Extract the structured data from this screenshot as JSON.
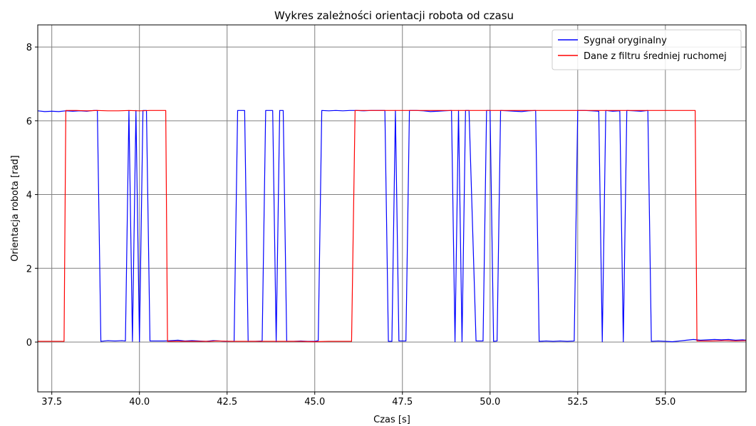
{
  "chart_data": {
    "type": "line",
    "title": "Wykres zależności orientacji robota od czasu",
    "xlabel": "Czas [s]",
    "ylabel": "Orientacja robota [rad]",
    "xlim": [
      37.1,
      57.3
    ],
    "ylim": [
      -1.35,
      8.6
    ],
    "xticks": [
      37.5,
      40.0,
      42.5,
      45.0,
      47.5,
      50.0,
      52.5,
      55.0
    ],
    "xtick_labels": [
      "37.5",
      "40.0",
      "42.5",
      "45.0",
      "47.5",
      "50.0",
      "52.5",
      "55.0"
    ],
    "yticks": [
      0,
      2,
      4,
      6,
      8
    ],
    "ytick_labels": [
      "0",
      "2",
      "4",
      "6",
      "8"
    ],
    "grid": true,
    "legend_position": "top-right",
    "series": [
      {
        "name": "Sygnał oryginalny",
        "color": "#0000ff",
        "x": [
          37.1,
          37.3,
          37.5,
          37.7,
          37.9,
          38.1,
          38.3,
          38.5,
          38.7,
          38.8,
          38.9,
          39.1,
          39.3,
          39.5,
          39.6,
          39.7,
          39.8,
          39.9,
          40.0,
          40.1,
          40.2,
          40.3,
          40.5,
          40.7,
          40.9,
          41.1,
          41.3,
          41.5,
          41.7,
          41.9,
          42.1,
          42.3,
          42.5,
          42.7,
          42.8,
          43.0,
          43.1,
          43.3,
          43.5,
          43.6,
          43.8,
          43.9,
          44.0,
          44.1,
          44.2,
          44.4,
          44.6,
          44.8,
          45.0,
          45.1,
          45.2,
          45.4,
          45.6,
          45.8,
          46.0,
          46.2,
          46.4,
          46.6,
          46.8,
          47.0,
          47.1,
          47.2,
          47.3,
          47.4,
          47.6,
          47.7,
          47.9,
          48.1,
          48.3,
          48.5,
          48.7,
          48.9,
          49.0,
          49.1,
          49.2,
          49.3,
          49.4,
          49.6,
          49.8,
          49.9,
          50.0,
          50.1,
          50.2,
          50.3,
          50.5,
          50.7,
          50.9,
          51.1,
          51.3,
          51.4,
          51.6,
          51.8,
          52.0,
          52.2,
          52.4,
          52.5,
          52.7,
          52.9,
          53.1,
          53.2,
          53.3,
          53.5,
          53.7,
          53.8,
          53.9,
          54.1,
          54.3,
          54.5,
          54.6,
          54.8,
          55.0,
          55.2,
          55.4,
          55.6,
          55.8,
          56.0,
          56.2,
          56.4,
          56.6,
          56.8,
          57.0,
          57.2,
          57.3
        ],
        "values": [
          6.27,
          6.25,
          6.26,
          6.25,
          6.27,
          6.26,
          6.27,
          6.26,
          6.28,
          6.28,
          0.02,
          0.04,
          0.03,
          0.04,
          0.03,
          6.28,
          0.02,
          6.28,
          0.01,
          6.28,
          6.28,
          0.03,
          0.03,
          0.03,
          0.04,
          0.05,
          0.03,
          0.04,
          0.03,
          0.02,
          0.04,
          0.03,
          0.02,
          0.02,
          6.28,
          6.28,
          0.02,
          0.02,
          0.03,
          6.28,
          6.28,
          0.01,
          6.28,
          6.28,
          0.02,
          0.02,
          0.03,
          0.02,
          0.02,
          0.04,
          6.28,
          6.27,
          6.28,
          6.27,
          6.28,
          6.28,
          6.27,
          6.28,
          6.28,
          6.28,
          0.02,
          0.02,
          6.28,
          0.03,
          0.03,
          6.28,
          6.28,
          6.27,
          6.25,
          6.26,
          6.27,
          6.28,
          0.01,
          6.28,
          0.01,
          6.28,
          6.28,
          0.03,
          0.03,
          6.28,
          6.28,
          0.02,
          0.03,
          6.28,
          6.27,
          6.26,
          6.25,
          6.27,
          6.28,
          0.02,
          0.03,
          0.02,
          0.03,
          0.02,
          0.03,
          6.28,
          6.28,
          6.27,
          6.26,
          0.01,
          6.28,
          6.26,
          6.27,
          0.01,
          6.28,
          6.27,
          6.26,
          6.28,
          0.02,
          0.03,
          0.02,
          0.01,
          0.03,
          0.05,
          0.07,
          0.05,
          0.06,
          0.07,
          0.06,
          0.07,
          0.05,
          0.06,
          0.05
        ]
      },
      {
        "name": "Dane z filtru średniej ruchomej",
        "color": "#ff0000",
        "x": [
          37.1,
          37.4,
          37.6,
          37.85,
          37.9,
          38.2,
          38.5,
          38.8,
          39.1,
          39.4,
          39.7,
          40.0,
          40.3,
          40.6,
          40.75,
          40.8,
          41.2,
          41.6,
          42.0,
          42.2,
          42.6,
          43.0,
          43.4,
          43.8,
          44.2,
          44.6,
          45.0,
          45.4,
          45.8,
          46.05,
          46.15,
          46.5,
          47.0,
          47.5,
          48.0,
          48.5,
          49.0,
          49.5,
          50.0,
          50.5,
          51.0,
          51.5,
          52.0,
          52.5,
          53.0,
          53.5,
          54.0,
          54.5,
          55.0,
          55.5,
          55.85,
          55.9,
          56.3,
          56.7,
          57.0,
          57.3
        ],
        "values": [
          0.02,
          0.02,
          0.02,
          0.02,
          6.28,
          6.28,
          6.27,
          6.28,
          6.27,
          6.27,
          6.28,
          6.27,
          6.28,
          6.28,
          6.28,
          0.02,
          0.02,
          0.02,
          0.02,
          0.03,
          0.02,
          0.02,
          0.02,
          0.02,
          0.02,
          0.02,
          0.01,
          0.02,
          0.02,
          0.02,
          6.28,
          6.28,
          6.28,
          6.28,
          6.28,
          6.28,
          6.28,
          6.28,
          6.28,
          6.28,
          6.28,
          6.28,
          6.28,
          6.28,
          6.28,
          6.28,
          6.28,
          6.28,
          6.28,
          6.28,
          6.28,
          0.03,
          0.03,
          0.04,
          0.03,
          0.04
        ]
      }
    ]
  }
}
